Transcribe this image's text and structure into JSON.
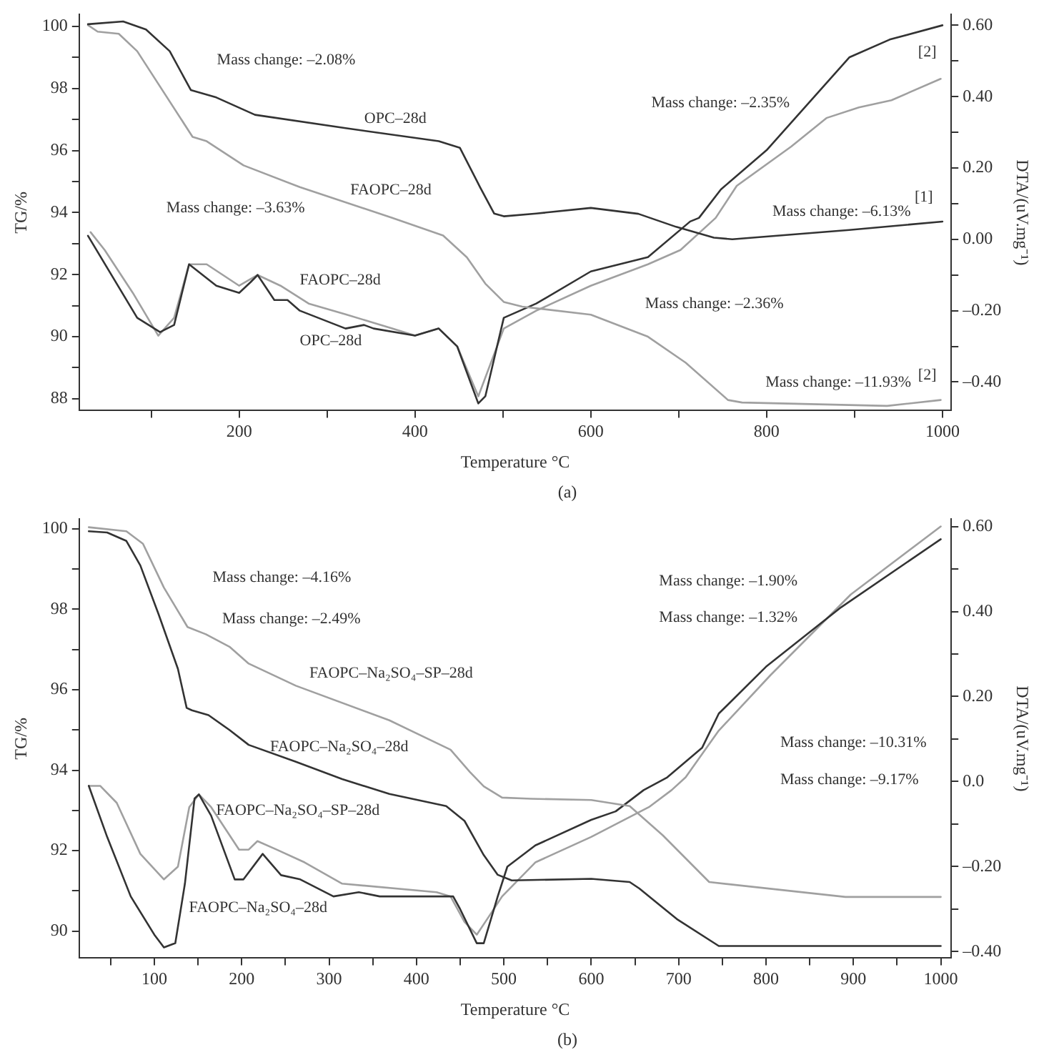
{
  "chart_data": [
    {
      "type": "line",
      "xlabel": "Temperature °C",
      "ylabel": "TG/%",
      "y2label": "DTA/(uV.mg⁻¹)",
      "legend": false,
      "grid": false,
      "marker": "none",
      "line_style": "solid",
      "xlim": [
        18,
        1010
      ],
      "xticks": [
        {
          "value": 100,
          "label": null
        },
        200,
        {
          "value": 300,
          "label": null
        },
        400,
        {
          "value": 500,
          "label": null
        },
        600,
        {
          "value": 700,
          "label": null
        },
        800,
        {
          "value": 900,
          "label": null
        },
        1000
      ],
      "ylim": [
        87.62,
        100.38
      ],
      "yticks": [
        88,
        {
          "value": 89,
          "label": null
        },
        90,
        {
          "value": 91,
          "label": null
        },
        92,
        {
          "value": 93,
          "label": null
        },
        94,
        {
          "value": 95,
          "label": null
        },
        96,
        {
          "value": 97,
          "label": null
        },
        98,
        {
          "value": 99,
          "label": null
        },
        100
      ],
      "y2lim": [
        -0.48,
        0.63
      ],
      "y2ticks": [
        {
          "value": -0.4,
          "label": "–0.40"
        },
        {
          "value": -0.3,
          "label": null
        },
        {
          "value": -0.2,
          "label": "–0.20"
        },
        {
          "value": -0.1,
          "label": null
        },
        {
          "value": 0,
          "label": "0.00"
        },
        {
          "value": 0.1,
          "label": null
        },
        {
          "value": 0.2,
          "label": "0.20"
        },
        {
          "value": 0.3,
          "label": null
        },
        {
          "value": 0.4,
          "label": "0.40"
        },
        {
          "value": 0.5,
          "label": null
        },
        {
          "value": 0.6,
          "label": "0.60"
        }
      ],
      "series": [
        {
          "color": "#333333",
          "x": [
            28,
            68,
            94,
            121,
            145,
            174,
            218,
            321,
            427,
            451,
            474,
            490,
            501,
            538,
            600,
            654,
            697,
            740,
            761,
            894,
            1000
          ],
          "values": [
            100.07,
            100.16,
            99.9,
            99.2,
            97.95,
            97.71,
            97.15,
            96.72,
            96.3,
            96.09,
            94.82,
            93.97,
            93.88,
            93.97,
            94.15,
            93.96,
            93.54,
            93.19,
            93.14,
            93.44,
            93.71
          ]
        },
        {
          "color": "#a0a0a0",
          "x": [
            28,
            39,
            63,
            84,
            147,
            163,
            205,
            269,
            374,
            432,
            459,
            480,
            501,
            522,
            600,
            665,
            708,
            756,
            772,
            937,
            998
          ],
          "values": [
            100.04,
            99.83,
            99.76,
            99.2,
            96.44,
            96.3,
            95.52,
            94.82,
            93.83,
            93.26,
            92.56,
            91.71,
            91.12,
            90.97,
            90.71,
            90.0,
            89.16,
            87.96,
            87.88,
            87.77,
            87.96
          ]
        },
        {
          "color": "#333333",
          "axis": "y2",
          "x": [
            28,
            84,
            110,
            126,
            143,
            174,
            200,
            213,
            221,
            240,
            255,
            269,
            321,
            342,
            353,
            400,
            427,
            448,
            472,
            480,
            501,
            538,
            600,
            665,
            713,
            723,
            748,
            800,
            894,
            940,
            1000
          ],
          "values": [
            0.01,
            -0.22,
            -0.26,
            -0.24,
            -0.07,
            -0.13,
            -0.15,
            -0.12,
            -0.1,
            -0.17,
            -0.17,
            -0.2,
            -0.25,
            -0.24,
            -0.25,
            -0.27,
            -0.25,
            -0.3,
            -0.46,
            -0.44,
            -0.22,
            -0.18,
            -0.09,
            -0.05,
            0.05,
            0.06,
            0.14,
            0.25,
            0.51,
            0.56,
            0.6
          ]
        },
        {
          "color": "#a0a0a0",
          "axis": "y2",
          "x": [
            31,
            47,
            79,
            108,
            126,
            143,
            163,
            200,
            221,
            247,
            279,
            321,
            374,
            400,
            427,
            448,
            472,
            501,
            538,
            600,
            665,
            702,
            742,
            766,
            828,
            868,
            905,
            942,
            998
          ],
          "values": [
            0.02,
            -0.03,
            -0.15,
            -0.27,
            -0.22,
            -0.07,
            -0.07,
            -0.13,
            -0.1,
            -0.13,
            -0.18,
            -0.21,
            -0.25,
            -0.27,
            -0.25,
            -0.3,
            -0.44,
            -0.25,
            -0.2,
            -0.13,
            -0.07,
            -0.03,
            0.06,
            0.15,
            0.26,
            0.34,
            0.37,
            0.39,
            0.45
          ]
        }
      ],
      "annotations": [
        "Mass change: –2.08%",
        "Mass change: –3.63%",
        "OPC–28d",
        "FAOPC–28d",
        "FAOPC–28d",
        "OPC–28d",
        "Mass change: –2.35%",
        "Mass change: –2.36%",
        "Mass change: –6.13%",
        "Mass change: –11.93%",
        "[2]",
        "[1]",
        "[2]",
        "(a)"
      ]
    },
    {
      "type": "line",
      "xlabel": "Temperature °C",
      "ylabel": "TG/%",
      "y2label": "DTA/(uV.mg⁻¹)",
      "legend": false,
      "grid": false,
      "marker": "none",
      "line_style": "solid",
      "xlim": [
        14,
        1012
      ],
      "xticks": [
        {
          "value": 50,
          "label": null
        },
        100,
        {
          "value": 150,
          "label": null
        },
        200,
        {
          "value": 250,
          "label": null
        },
        300,
        {
          "value": 350,
          "label": null
        },
        400,
        {
          "value": 450,
          "label": null
        },
        500,
        {
          "value": 550,
          "label": null
        },
        600,
        {
          "value": 650,
          "label": null
        },
        700,
        {
          "value": 750,
          "label": null
        },
        800,
        {
          "value": 850,
          "label": null
        },
        900,
        {
          "value": 950,
          "label": null
        },
        1000
      ],
      "ylim": [
        89.33,
        100.24
      ],
      "yticks": [
        90,
        {
          "value": 91,
          "label": null
        },
        92,
        {
          "value": 93,
          "label": null
        },
        94,
        {
          "value": 95,
          "label": null
        },
        96,
        {
          "value": 97,
          "label": null
        },
        98,
        {
          "value": 99,
          "label": null
        },
        100
      ],
      "y2lim": [
        -0.415,
        0.617
      ],
      "y2ticks": [
        {
          "value": -0.4,
          "label": "–0.40"
        },
        {
          "value": -0.3,
          "label": null
        },
        {
          "value": -0.2,
          "label": "–0.20"
        },
        {
          "value": -0.1,
          "label": null
        },
        {
          "value": 0,
          "label": "0.0"
        },
        {
          "value": 0.1,
          "label": null
        },
        {
          "value": 0.2,
          "label": "0.20"
        },
        {
          "value": 0.3,
          "label": null
        },
        {
          "value": 0.4,
          "label": "0.40"
        },
        {
          "value": 0.5,
          "label": null
        },
        {
          "value": 0.6,
          "label": "0.60"
        }
      ],
      "series": [
        {
          "color": "#333333",
          "x": [
            25,
            46,
            68,
            84,
            105,
            127,
            137,
            143,
            162,
            186,
            208,
            262,
            315,
            369,
            434,
            455,
            477,
            493,
            509,
            600,
            644,
            655,
            698,
            746,
            1000
          ],
          "values": [
            99.94,
            99.91,
            99.7,
            99.09,
            97.87,
            96.52,
            95.55,
            95.49,
            95.37,
            95.0,
            94.63,
            94.21,
            93.78,
            93.41,
            93.11,
            92.74,
            91.89,
            91.4,
            91.26,
            91.3,
            91.22,
            91.06,
            90.3,
            89.63,
            89.63
          ]
        },
        {
          "color": "#a0a0a0",
          "x": [
            25,
            68,
            87,
            111,
            138,
            159,
            186,
            208,
            262,
            369,
            439,
            461,
            477,
            498,
            531,
            600,
            644,
            682,
            735,
            891,
            1000
          ],
          "values": [
            100.04,
            99.94,
            99.63,
            98.54,
            97.56,
            97.38,
            97.07,
            96.65,
            96.1,
            95.24,
            94.51,
            93.96,
            93.6,
            93.32,
            93.29,
            93.26,
            93.11,
            92.38,
            91.22,
            90.85,
            90.85
          ]
        },
        {
          "color": "#333333",
          "axis": "y2",
          "x": [
            25,
            46,
            73,
            100,
            111,
            124,
            135,
            146,
            151,
            165,
            192,
            202,
            224,
            245,
            267,
            305,
            334,
            358,
            442,
            450,
            469,
            477,
            493,
            504,
            536,
            600,
            628,
            660,
            687,
            727,
            746,
            800,
            886,
            1000
          ],
          "values": [
            -0.01,
            -0.13,
            -0.27,
            -0.36,
            -0.39,
            -0.38,
            -0.24,
            -0.04,
            -0.03,
            -0.08,
            -0.23,
            -0.23,
            -0.17,
            -0.22,
            -0.23,
            -0.27,
            -0.26,
            -0.27,
            -0.27,
            -0.3,
            -0.38,
            -0.38,
            -0.27,
            -0.2,
            -0.15,
            -0.09,
            -0.07,
            -0.02,
            0.01,
            0.08,
            0.16,
            0.27,
            0.41,
            0.57
          ]
        },
        {
          "color": "#a0a0a0",
          "axis": "y2",
          "x": [
            25,
            38,
            57,
            84,
            111,
            127,
            140,
            151,
            165,
            197,
            208,
            218,
            240,
            272,
            315,
            423,
            439,
            455,
            469,
            482,
            498,
            536,
            600,
            666,
            692,
            708,
            746,
            805,
            897,
            1000
          ],
          "values": [
            -0.01,
            -0.01,
            -0.05,
            -0.17,
            -0.23,
            -0.2,
            -0.06,
            -0.03,
            -0.06,
            -0.16,
            -0.16,
            -0.14,
            -0.16,
            -0.19,
            -0.24,
            -0.26,
            -0.27,
            -0.33,
            -0.36,
            -0.32,
            -0.27,
            -0.19,
            -0.13,
            -0.06,
            -0.02,
            0.01,
            0.12,
            0.25,
            0.44,
            0.6
          ]
        }
      ],
      "annotations": [
        "Mass change: –4.16%",
        "Mass change: –2.49%",
        "FAOPC–Na₂SO₄–SP–28d",
        "FAOPC–Na₂SO₄–28d",
        "FAOPC–Na₂SO₄–SP–28d",
        "FAOPC–Na₂SO₄–28d",
        "Mass change: –1.90%",
        "Mass change: –1.32%",
        "Mass change: –10.31%",
        "Mass change: –9.17%",
        "(b)"
      ]
    }
  ]
}
